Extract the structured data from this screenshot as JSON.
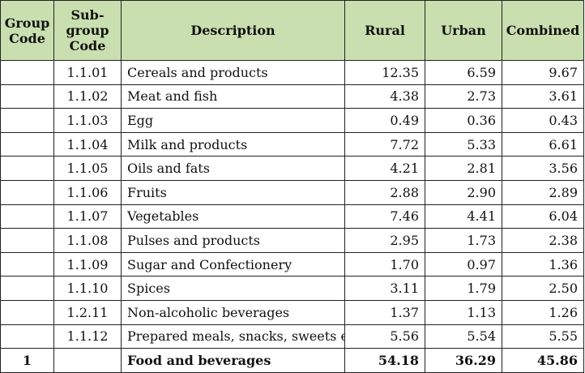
{
  "headers": {
    "group_code": "Group Code",
    "sub_group_code": "Sub-group Code",
    "description": "Description",
    "rural": "Rural",
    "urban": "Urban",
    "combined": "Combined"
  },
  "rows": [
    {
      "group": "",
      "sub": "1.1.01",
      "desc": "Cereals and products",
      "rural": "12.35",
      "urban": "6.59",
      "combined": "9.67"
    },
    {
      "group": "",
      "sub": "1.1.02",
      "desc": "Meat and fish",
      "rural": "4.38",
      "urban": "2.73",
      "combined": "3.61"
    },
    {
      "group": "",
      "sub": "1.1.03",
      "desc": "Egg",
      "rural": "0.49",
      "urban": "0.36",
      "combined": "0.43"
    },
    {
      "group": "",
      "sub": "1.1.04",
      "desc": "Milk and products",
      "rural": "7.72",
      "urban": "5.33",
      "combined": "6.61"
    },
    {
      "group": "",
      "sub": "1.1.05",
      "desc": "Oils and fats",
      "rural": "4.21",
      "urban": "2.81",
      "combined": "3.56"
    },
    {
      "group": "",
      "sub": "1.1.06",
      "desc": "Fruits",
      "rural": "2.88",
      "urban": "2.90",
      "combined": "2.89"
    },
    {
      "group": "",
      "sub": "1.1.07",
      "desc": "Vegetables",
      "rural": "7.46",
      "urban": "4.41",
      "combined": "6.04"
    },
    {
      "group": "",
      "sub": "1.1.08",
      "desc": "Pulses and products",
      "rural": "2.95",
      "urban": "1.73",
      "combined": "2.38"
    },
    {
      "group": "",
      "sub": "1.1.09",
      "desc": "Sugar and Confectionery",
      "rural": "1.70",
      "urban": "0.97",
      "combined": "1.36"
    },
    {
      "group": "",
      "sub": "1.1.10",
      "desc": "Spices",
      "rural": "3.11",
      "urban": "1.79",
      "combined": "2.50"
    },
    {
      "group": "",
      "sub": "1.2.11",
      "desc": "Non-alcoholic beverages",
      "rural": "1.37",
      "urban": "1.13",
      "combined": "1.26"
    },
    {
      "group": "",
      "sub": "1.1.12",
      "desc": "Prepared meals, snacks, sweets etc.",
      "rural": "5.56",
      "urban": "5.54",
      "combined": "5.55"
    }
  ],
  "total": {
    "group": "1",
    "sub": "",
    "desc": "Food and beverages",
    "rural": "54.18",
    "urban": "36.29",
    "combined": "45.86"
  },
  "colors": {
    "header_bg": "#c9dfaf",
    "border": "#222222"
  }
}
